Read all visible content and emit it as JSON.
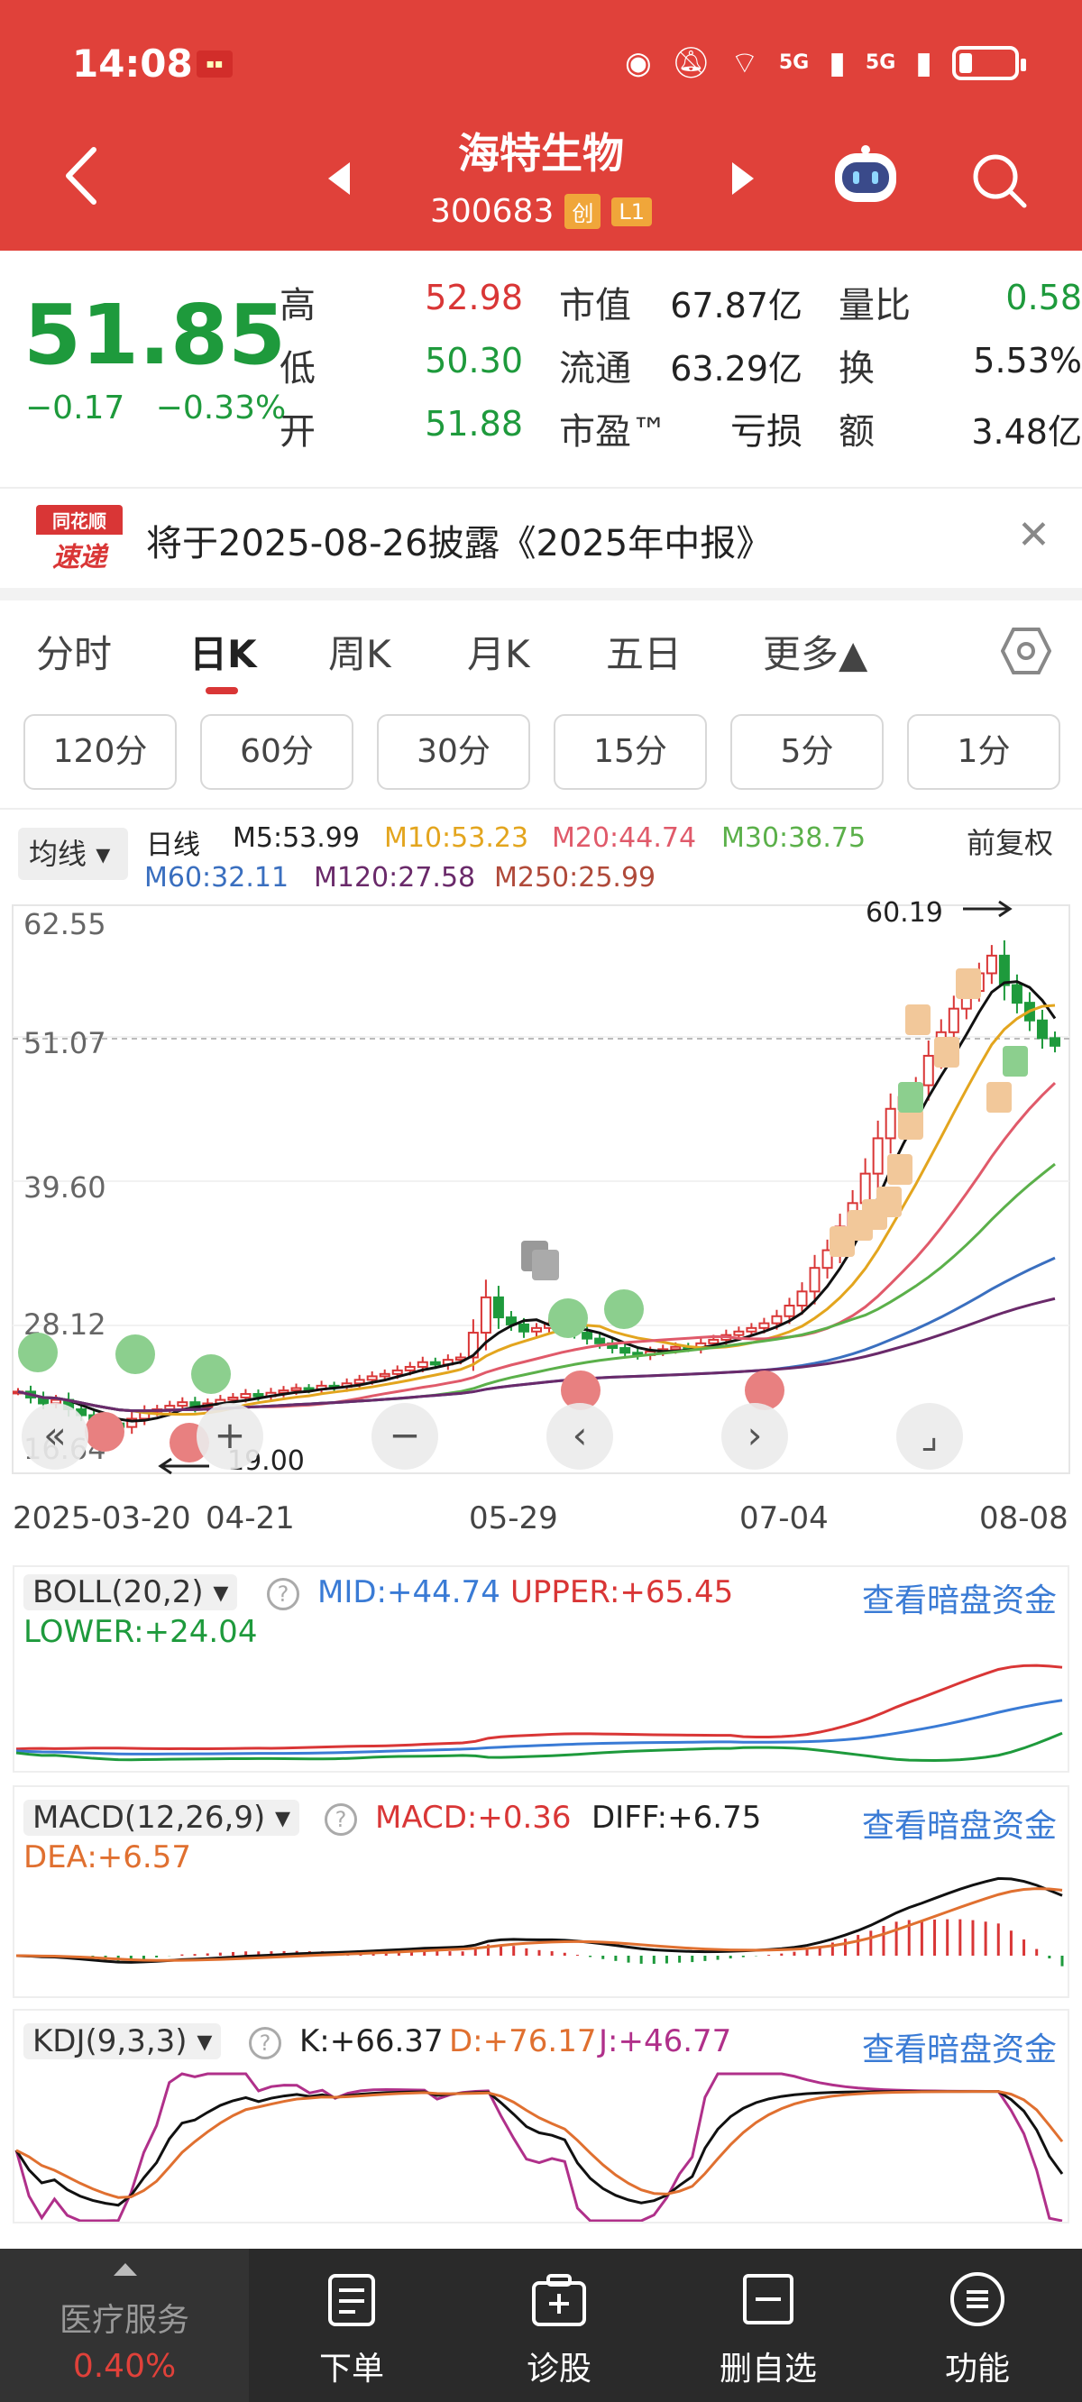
{
  "status": {
    "time": "14:08",
    "sig1": "5G",
    "sig2": "5G"
  },
  "header": {
    "name": "海特生物",
    "code": "300683",
    "tag1": "创",
    "tag2": "L1"
  },
  "quote": {
    "price": "51.85",
    "change": "−0.17",
    "change_pct": "−0.33%",
    "high_label": "高",
    "high": "52.98",
    "low_label": "低",
    "low": "50.30",
    "open_label": "开",
    "open": "51.88",
    "mcap_label": "市值",
    "mcap": "67.87亿",
    "float_label": "流通",
    "float": "63.29亿",
    "pe_label": "市盈™",
    "pe": "亏损",
    "vr_label": "量比",
    "vr": "0.58",
    "turn_label": "换",
    "turn": "5.53%",
    "amt_label": "额",
    "amt": "3.48亿"
  },
  "news": {
    "logo1": "同花顺",
    "logo2": "速递",
    "text": "将于2025-08-26披露《2025年中报》"
  },
  "tabs": [
    "分时",
    "日K",
    "周K",
    "月K",
    "五日",
    "更多▲"
  ],
  "minutes": [
    "120分",
    "60分",
    "30分",
    "15分",
    "5分",
    "1分"
  ],
  "ma": {
    "select": "均线",
    "title": "日线",
    "m5": "M5:53.99",
    "m10": "M10:53.23",
    "m20": "M20:44.74",
    "m30": "M30:38.75",
    "m60": "M60:32.11",
    "m120": "M120:27.58",
    "m250": "M250:25.99",
    "fq": "前复权"
  },
  "chart_data": {
    "type": "candlestick",
    "y_ticks": [
      "62.55",
      "51.07",
      "39.60",
      "28.12",
      "16.64"
    ],
    "x_ticks": [
      "2025-03-20",
      "04-21",
      "05-29",
      "07-04",
      "08-08"
    ],
    "high_mark": "60.19",
    "low_mark": "19.00",
    "ylim": [
      16.64,
      62.55
    ],
    "close_series": [
      22.5,
      22.0,
      21.5,
      21.8,
      21.0,
      20.5,
      20.0,
      19.8,
      19.5,
      20.2,
      20.8,
      21.0,
      21.3,
      21.6,
      21.2,
      21.5,
      21.8,
      22.0,
      22.3,
      22.1,
      22.4,
      22.6,
      22.8,
      22.7,
      23.0,
      22.9,
      23.2,
      23.5,
      23.8,
      24.0,
      24.3,
      24.6,
      25.0,
      24.8,
      25.2,
      25.4,
      27.5,
      30.5,
      28.8,
      28.2,
      27.6,
      27.9,
      28.3,
      28.0,
      27.5,
      27.0,
      26.6,
      26.2,
      25.8,
      25.6,
      25.9,
      26.1,
      26.3,
      26.2,
      26.6,
      26.9,
      27.3,
      27.6,
      27.9,
      28.3,
      28.9,
      29.8,
      31.0,
      33.0,
      34.5,
      36.5,
      38.5,
      41.0,
      44.0,
      46.5,
      47.5,
      48.5,
      51.0,
      53.0,
      55.0,
      56.5,
      58.0,
      59.5,
      57.0,
      55.5,
      54.0,
      52.5,
      51.85
    ]
  },
  "boll": {
    "select": "BOLL(20,2)",
    "mid": "MID:+44.74",
    "upper": "UPPER:+65.45",
    "lower": "LOWER:+24.04",
    "link": "查看暗盘资金"
  },
  "macd": {
    "select": "MACD(12,26,9)",
    "macd": "MACD:+0.36",
    "diff": "DIFF:+6.75",
    "dea": "DEA:+6.57",
    "link": "查看暗盘资金"
  },
  "kdj": {
    "select": "KDJ(9,3,3)",
    "k": "K:+66.37",
    "d": "D:+76.17",
    "j": "J:+46.77",
    "link": "查看暗盘资金"
  },
  "bottom": {
    "sector": "医疗服务",
    "sector_pct": "0.40%",
    "order": "下单",
    "diagnose": "诊股",
    "remove": "删自选",
    "func": "功能"
  },
  "colors": {
    "red": "#e0413a",
    "up": "#d93636",
    "down": "#1e9a3c",
    "link": "#3a7bd5"
  }
}
